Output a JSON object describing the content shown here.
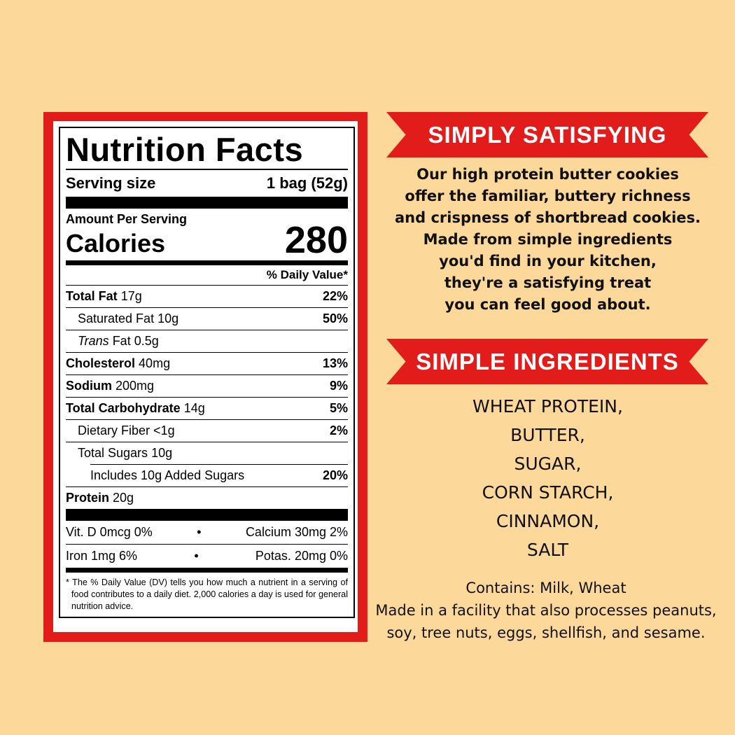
{
  "label": {
    "title": "Nutrition Facts",
    "serving_label": "Serving size",
    "serving_value": "1 bag (52g)",
    "amount_per_serving": "Amount Per Serving",
    "calories_label": "Calories",
    "calories_value": "280",
    "dv_header": "% Daily Value*",
    "rows": [
      {
        "name": "Total Fat",
        "amount": "17g",
        "dv": "22%"
      },
      {
        "name": "Saturated Fat",
        "amount": "10g",
        "dv": "50%"
      },
      {
        "name": "Trans",
        "name2": " Fat 0.5g",
        "dv": ""
      },
      {
        "name": "Cholesterol",
        "amount": "40mg",
        "dv": "13%"
      },
      {
        "name": "Sodium",
        "amount": "200mg",
        "dv": "9%"
      },
      {
        "name": "Total Carbohydrate",
        "amount": "14g",
        "dv": "5%"
      },
      {
        "name": "Dietary Fiber",
        "amount": "<1g",
        "dv": "2%"
      },
      {
        "name": "Total Sugars",
        "amount": "10g",
        "dv": ""
      },
      {
        "name": "Includes 10g Added Sugars",
        "dv": "20%"
      },
      {
        "name": "Protein",
        "amount": "20g",
        "dv": ""
      }
    ],
    "minerals": [
      {
        "left": "Vit. D 0mcg 0%",
        "right": "Calcium 30mg 2%"
      },
      {
        "left": "Iron 1mg 6%",
        "right": "Potas. 20mg 0%"
      }
    ],
    "bullet": "•",
    "footnote": "* The % Daily Value (DV) tells you how much a nutrient in a serving of food contributes to a daily diet. 2,000 calories a day is used for general nutrition advice."
  },
  "section1": {
    "heading": "SIMPLY SATISFYING",
    "lines": [
      "Our high protein butter cookies",
      "offer the familiar, buttery richness",
      "and crispness of shortbread cookies.",
      "Made from simple ingredients",
      "you'd find in your kitchen,",
      "they're a satisfying treat",
      "you can feel good about."
    ]
  },
  "section2": {
    "heading": "SIMPLE INGREDIENTS",
    "ingredients": [
      "WHEAT PROTEIN,",
      "BUTTER,",
      "SUGAR,",
      "CORN STARCH,",
      "CINNAMON,",
      "SALT"
    ],
    "contains": "Contains: Milk, Wheat",
    "facility": [
      "Made in a facility that also processes peanuts,",
      "soy, tree nuts, eggs, shellfish, and sesame."
    ]
  },
  "colors": {
    "background": "#fdd89b",
    "accent_red": "#e21b1b"
  }
}
